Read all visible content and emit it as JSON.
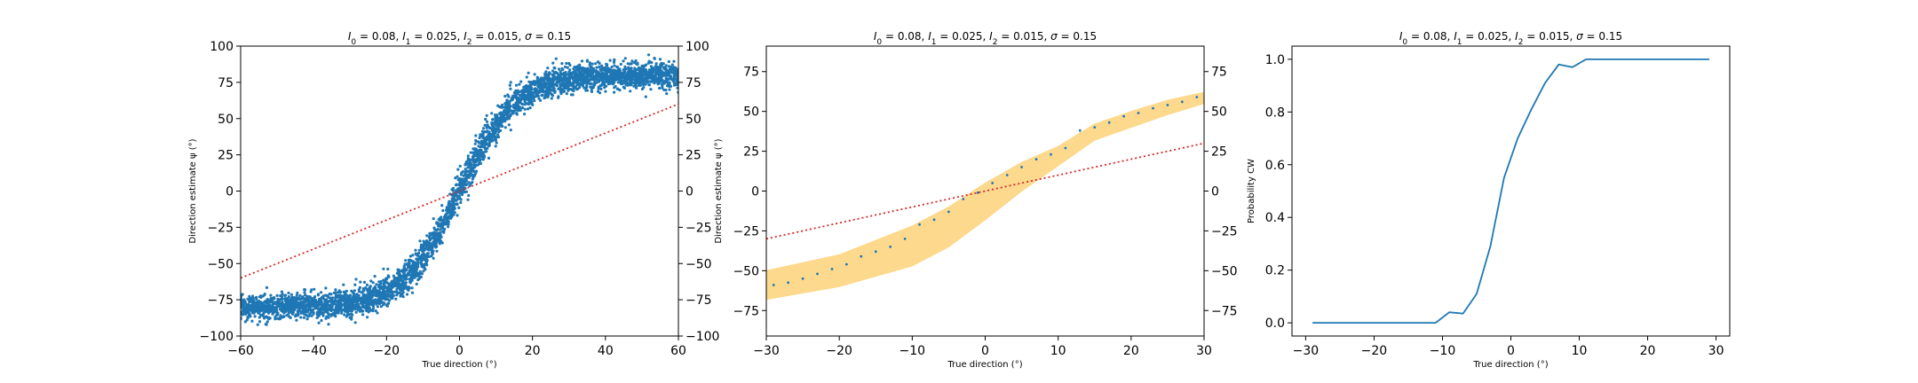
{
  "chart_data": [
    {
      "type": "scatter",
      "title_parts": [
        "I",
        "0",
        " = 0.08, ",
        "I",
        "1",
        " = 0.025, ",
        "I",
        "2",
        " = 0.015, ",
        "σ",
        " = 0.15"
      ],
      "xlabel": "True direction (°)",
      "ylabel": "Direction estimate ψ (°)",
      "xlim": [
        -60,
        60
      ],
      "ylim": [
        -100,
        100
      ],
      "xticks": [
        -60,
        -40,
        -20,
        0,
        20,
        40,
        60
      ],
      "yticks": [
        -100,
        -75,
        -50,
        -25,
        0,
        25,
        50,
        75,
        100
      ],
      "right_yticks": [
        -100,
        -75,
        -50,
        -25,
        0,
        25,
        50,
        75,
        100
      ],
      "scatter_color": "#1f77b4",
      "reference_line_color": "#d62728",
      "reference_line": [
        [
          -60,
          -60
        ],
        [
          60,
          60
        ]
      ],
      "scatter_model": {
        "x_range": [
          -60,
          60
        ],
        "amplitude": 80,
        "steepness": 0.065,
        "noise": 6.5,
        "count": 4000
      }
    },
    {
      "type": "line",
      "title_parts": [
        "I",
        "0",
        " = 0.08, ",
        "I",
        "1",
        " = 0.025, ",
        "I",
        "2",
        " = 0.015, ",
        "σ",
        " = 0.15"
      ],
      "xlabel": "True direction (°)",
      "ylabel": "Direction estimate ψ (°)",
      "xlim": [
        -30,
        30
      ],
      "ylim": [
        -91,
        91
      ],
      "xticks": [
        -30,
        -20,
        -10,
        0,
        10,
        20,
        30
      ],
      "yticks": [
        -75,
        -50,
        -25,
        0,
        25,
        50,
        75
      ],
      "right_yticks": [
        -75,
        -50,
        -25,
        0,
        25,
        50,
        75
      ],
      "band_color": "#fdd788",
      "marker_color": "#1f77b4",
      "reference_line_color": "#d62728",
      "reference_line": [
        [
          -30,
          -30
        ],
        [
          30,
          30
        ]
      ],
      "x": [
        -29,
        -27,
        -25,
        -23,
        -21,
        -19,
        -17,
        -15,
        -13,
        -11,
        -9,
        -7,
        -5,
        -3,
        -1,
        1,
        3,
        5,
        7,
        9,
        11,
        13,
        15,
        17,
        19,
        21,
        23,
        25,
        27,
        29
      ],
      "mean": [
        -59,
        -57.5,
        -55,
        -52,
        -49,
        -46,
        -41,
        -38,
        -35,
        -30,
        -21,
        -18,
        -13,
        -5,
        -1,
        5,
        10,
        15,
        20,
        23,
        27,
        38,
        40,
        43,
        47,
        49,
        52,
        54,
        56,
        59
      ],
      "band_x": [
        -30,
        -20,
        -10,
        -5,
        0,
        5,
        10,
        15,
        20,
        25,
        30
      ],
      "band_upper": [
        -50,
        -40,
        -22,
        -10,
        5,
        18,
        28,
        42,
        50,
        57,
        62
      ],
      "band_lower": [
        -68,
        -60,
        -47,
        -35,
        -18,
        0,
        16,
        32,
        40,
        48,
        55
      ]
    },
    {
      "type": "line",
      "title_parts": [
        "I",
        "0",
        " = 0.08, ",
        "I",
        "1",
        " = 0.025, ",
        "I",
        "2",
        " = 0.015, ",
        "σ",
        " = 0.15"
      ],
      "xlabel": "True direction (°)",
      "ylabel": "Probability CW",
      "xlim": [
        -32,
        32
      ],
      "ylim": [
        -0.05,
        1.05
      ],
      "xticks": [
        -30,
        -20,
        -10,
        0,
        10,
        20,
        30
      ],
      "xticklabels": [
        "−30",
        "−20",
        "−10",
        "0",
        "10",
        "20",
        "30"
      ],
      "yticks": [
        0.0,
        0.2,
        0.4,
        0.6,
        0.8,
        1.0
      ],
      "yticklabels": [
        "0.0",
        "0.2",
        "0.4",
        "0.6",
        "0.8",
        "1.0"
      ],
      "line_color": "#1f77b4",
      "x": [
        -29,
        -27,
        -25,
        -23,
        -21,
        -19,
        -17,
        -15,
        -13,
        -11,
        -9,
        -7,
        -5,
        -3,
        -1,
        1,
        3,
        5,
        7,
        9,
        11,
        13,
        15,
        17,
        19,
        21,
        23,
        25,
        27,
        29
      ],
      "y": [
        0,
        0,
        0,
        0,
        0,
        0,
        0,
        0,
        0,
        0,
        0.04,
        0.035,
        0.11,
        0.29,
        0.55,
        0.7,
        0.81,
        0.91,
        0.98,
        0.97,
        1,
        1,
        1,
        1,
        1,
        1,
        1,
        1,
        1,
        1
      ]
    }
  ]
}
